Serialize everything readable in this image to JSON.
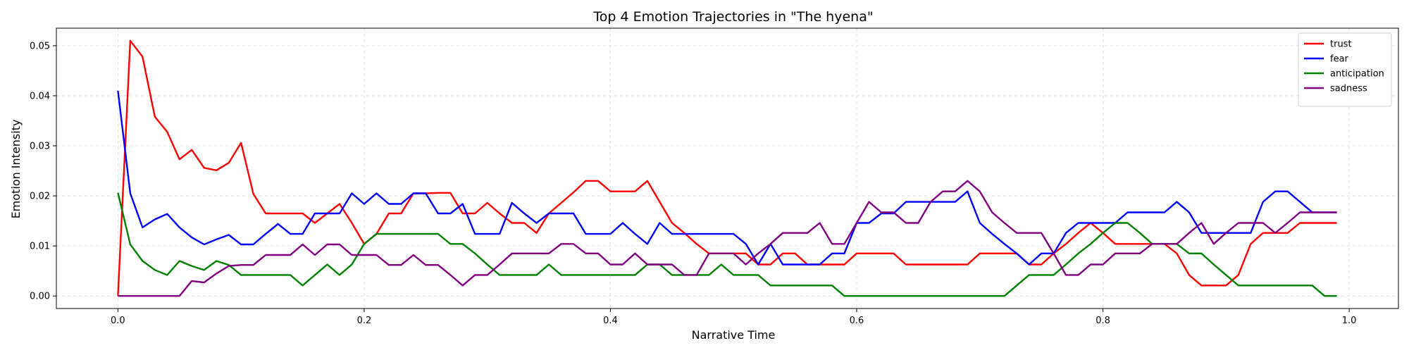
{
  "chart_data": {
    "type": "line",
    "title": "Top 4 Emotion Trajectories in \"The hyena\"",
    "xlabel": "Narrative Time",
    "ylabel": "Emotion Intensity",
    "xlim": [
      -0.05,
      1.04
    ],
    "ylim": [
      -0.0025,
      0.0535
    ],
    "xticks": [
      0.0,
      0.2,
      0.4,
      0.6,
      0.8,
      1.0
    ],
    "xtick_labels": [
      "0.0",
      "0.2",
      "0.4",
      "0.6",
      "0.8",
      "1.0"
    ],
    "yticks": [
      0.0,
      0.01,
      0.02,
      0.03,
      0.04,
      0.05
    ],
    "ytick_labels": [
      "0.00",
      "0.01",
      "0.02",
      "0.03",
      "0.04",
      "0.05"
    ],
    "grid": true,
    "legend_position": "upper-right",
    "x": [
      0.0,
      0.01,
      0.02,
      0.03,
      0.04,
      0.05,
      0.06,
      0.07,
      0.08,
      0.09,
      0.1,
      0.11,
      0.12,
      0.13,
      0.14,
      0.15,
      0.16,
      0.17,
      0.18,
      0.19,
      0.2,
      0.21,
      0.22,
      0.23,
      0.24,
      0.25,
      0.26,
      0.27,
      0.28,
      0.29,
      0.3,
      0.31,
      0.32,
      0.33,
      0.34,
      0.35,
      0.36,
      0.37,
      0.38,
      0.39,
      0.4,
      0.41,
      0.42,
      0.43,
      0.44,
      0.45,
      0.46,
      0.47,
      0.48,
      0.49,
      0.5,
      0.51,
      0.52,
      0.53,
      0.54,
      0.55,
      0.56,
      0.57,
      0.58,
      0.59,
      0.6,
      0.61,
      0.62,
      0.63,
      0.64,
      0.65,
      0.66,
      0.67,
      0.68,
      0.69,
      0.7,
      0.71,
      0.72,
      0.73,
      0.74,
      0.75,
      0.76,
      0.77,
      0.78,
      0.79,
      0.8,
      0.81,
      0.82,
      0.83,
      0.84,
      0.85,
      0.86,
      0.87,
      0.88,
      0.89,
      0.9,
      0.91,
      0.92,
      0.93,
      0.94,
      0.95,
      0.96,
      0.97,
      0.98,
      0.99
    ],
    "series": [
      {
        "name": "trust",
        "color": "#ff0000",
        "values": [
          0.0,
          0.051,
          0.0478,
          0.0358,
          0.0328,
          0.0273,
          0.0292,
          0.0256,
          0.0251,
          0.0266,
          0.0306,
          0.0204,
          0.0165,
          0.0165,
          0.0165,
          0.0165,
          0.0146,
          0.0165,
          0.0184,
          0.0146,
          0.0104,
          0.0124,
          0.0165,
          0.0165,
          0.0205,
          0.0205,
          0.0206,
          0.0206,
          0.0165,
          0.0165,
          0.0186,
          0.0165,
          0.0146,
          0.0146,
          0.0126,
          0.0165,
          0.0186,
          0.0207,
          0.023,
          0.023,
          0.0209,
          0.0209,
          0.0209,
          0.023,
          0.0188,
          0.0146,
          0.0126,
          0.0104,
          0.0085,
          0.0085,
          0.0085,
          0.0085,
          0.0063,
          0.0063,
          0.0085,
          0.0085,
          0.0063,
          0.0063,
          0.0063,
          0.0063,
          0.0085,
          0.0085,
          0.0085,
          0.0085,
          0.0063,
          0.0063,
          0.0063,
          0.0063,
          0.0063,
          0.0063,
          0.0085,
          0.0085,
          0.0085,
          0.0085,
          0.0063,
          0.0063,
          0.0085,
          0.0104,
          0.0126,
          0.0146,
          0.0126,
          0.0104,
          0.0104,
          0.0104,
          0.0104,
          0.0104,
          0.0085,
          0.0042,
          0.0021,
          0.0021,
          0.0021,
          0.0042,
          0.0104,
          0.0126,
          0.0126,
          0.0126,
          0.0146,
          0.0146,
          0.0146,
          0.0146
        ]
      },
      {
        "name": "fear",
        "color": "#0000ff",
        "values": [
          0.041,
          0.0205,
          0.0137,
          0.0153,
          0.0164,
          0.0137,
          0.0117,
          0.0103,
          0.0113,
          0.0122,
          0.0103,
          0.0103,
          0.0124,
          0.0144,
          0.0124,
          0.0124,
          0.0165,
          0.0165,
          0.0165,
          0.0205,
          0.0184,
          0.0205,
          0.0184,
          0.0184,
          0.0205,
          0.0205,
          0.0165,
          0.0165,
          0.0184,
          0.0124,
          0.0124,
          0.0124,
          0.0186,
          0.0165,
          0.0146,
          0.0165,
          0.0165,
          0.0165,
          0.0124,
          0.0124,
          0.0124,
          0.0146,
          0.0124,
          0.0104,
          0.0146,
          0.0124,
          0.0124,
          0.0124,
          0.0124,
          0.0124,
          0.0124,
          0.0104,
          0.0063,
          0.0104,
          0.0063,
          0.0063,
          0.0063,
          0.0063,
          0.0085,
          0.0085,
          0.0146,
          0.0146,
          0.0165,
          0.0165,
          0.0188,
          0.0188,
          0.0188,
          0.0188,
          0.0188,
          0.0209,
          0.0146,
          0.0124,
          0.0104,
          0.0085,
          0.0063,
          0.0085,
          0.0085,
          0.0126,
          0.0146,
          0.0146,
          0.0146,
          0.0146,
          0.0167,
          0.0167,
          0.0167,
          0.0167,
          0.0188,
          0.0167,
          0.0126,
          0.0126,
          0.0126,
          0.0126,
          0.0126,
          0.0188,
          0.0209,
          0.0209,
          0.0188,
          0.0167,
          0.0167,
          0.0167
        ]
      },
      {
        "name": "anticipation",
        "color": "#008000",
        "values": [
          0.0206,
          0.0103,
          0.007,
          0.0052,
          0.0042,
          0.007,
          0.006,
          0.0052,
          0.007,
          0.0062,
          0.0042,
          0.0042,
          0.0042,
          0.0042,
          0.0042,
          0.0021,
          0.0042,
          0.0063,
          0.0042,
          0.0063,
          0.0104,
          0.0124,
          0.0124,
          0.0124,
          0.0124,
          0.0124,
          0.0124,
          0.0104,
          0.0104,
          0.0085,
          0.0063,
          0.0042,
          0.0042,
          0.0042,
          0.0042,
          0.0063,
          0.0042,
          0.0042,
          0.0042,
          0.0042,
          0.0042,
          0.0042,
          0.0042,
          0.0063,
          0.0063,
          0.0042,
          0.0042,
          0.0042,
          0.0042,
          0.0063,
          0.0042,
          0.0042,
          0.0042,
          0.0021,
          0.0021,
          0.0021,
          0.0021,
          0.0021,
          0.0021,
          0.0,
          0.0,
          0.0,
          0.0,
          0.0,
          0.0,
          0.0,
          0.0,
          0.0,
          0.0,
          0.0,
          0.0,
          0.0,
          0.0,
          0.0021,
          0.0042,
          0.0042,
          0.0042,
          0.0063,
          0.0085,
          0.0104,
          0.0126,
          0.0146,
          0.0146,
          0.0126,
          0.0104,
          0.0104,
          0.0104,
          0.0085,
          0.0085,
          0.0063,
          0.0042,
          0.0021,
          0.0021,
          0.0021,
          0.0021,
          0.0021,
          0.0021,
          0.0021,
          0.0,
          0.0
        ]
      },
      {
        "name": "sadness",
        "color": "#800080",
        "values": [
          0.0,
          0.0,
          0.0,
          0.0,
          0.0,
          0.0,
          0.003,
          0.0027,
          0.0045,
          0.006,
          0.0062,
          0.0062,
          0.0082,
          0.0082,
          0.0082,
          0.0103,
          0.0082,
          0.0103,
          0.0103,
          0.0082,
          0.0082,
          0.0082,
          0.0062,
          0.0062,
          0.0082,
          0.0062,
          0.0062,
          0.0042,
          0.0021,
          0.0042,
          0.0042,
          0.0063,
          0.0085,
          0.0085,
          0.0085,
          0.0085,
          0.0104,
          0.0104,
          0.0085,
          0.0085,
          0.0063,
          0.0063,
          0.0085,
          0.0063,
          0.0063,
          0.0063,
          0.0042,
          0.0042,
          0.0085,
          0.0085,
          0.0085,
          0.0063,
          0.0085,
          0.0104,
          0.0126,
          0.0126,
          0.0126,
          0.0146,
          0.0104,
          0.0104,
          0.0146,
          0.0188,
          0.0167,
          0.0167,
          0.0146,
          0.0146,
          0.0188,
          0.0209,
          0.0209,
          0.023,
          0.0209,
          0.0167,
          0.0146,
          0.0126,
          0.0126,
          0.0126,
          0.0085,
          0.0042,
          0.0042,
          0.0063,
          0.0063,
          0.0085,
          0.0085,
          0.0085,
          0.0104,
          0.0104,
          0.0104,
          0.0126,
          0.0146,
          0.0104,
          0.0126,
          0.0146,
          0.0146,
          0.0146,
          0.0126,
          0.0146,
          0.0167,
          0.0167,
          0.0167,
          0.0167
        ]
      }
    ]
  }
}
